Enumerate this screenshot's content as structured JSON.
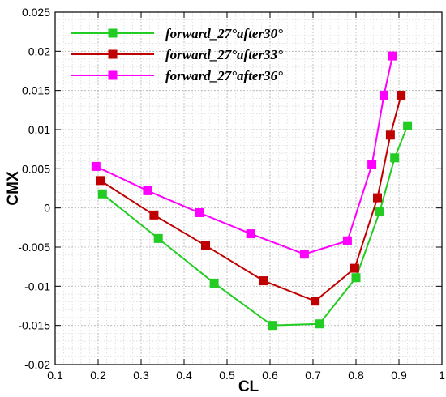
{
  "chart_data": {
    "type": "line",
    "xlabel": "CL",
    "ylabel": "CMX",
    "xlim": [
      0.1,
      1.0
    ],
    "ylim": [
      -0.02,
      0.025
    ],
    "xticks": [
      "0.1",
      "0.2",
      "0.3",
      "0.4",
      "0.5",
      "0.6",
      "0.7",
      "0.8",
      "0.9",
      "1"
    ],
    "yticks": [
      "-0.02",
      "-0.015",
      "-0.01",
      "-0.005",
      "0",
      "0.005",
      "0.01",
      "0.015",
      "0.02",
      "0.025"
    ],
    "grid": true,
    "legend_position": "top-left",
    "series": [
      {
        "name": "forward_27°after30°",
        "color": "#22cc22",
        "marker": "square",
        "points": [
          [
            0.21,
            0.0018
          ],
          [
            0.34,
            -0.0039
          ],
          [
            0.47,
            -0.0096
          ],
          [
            0.605,
            -0.015
          ],
          [
            0.715,
            -0.0148
          ],
          [
            0.8,
            -0.0089
          ],
          [
            0.855,
            -0.0005
          ],
          [
            0.89,
            0.0064
          ],
          [
            0.92,
            0.0105
          ]
        ]
      },
      {
        "name": "forward_27°after33°",
        "color": "#c00000",
        "marker": "square",
        "points": [
          [
            0.205,
            0.0035
          ],
          [
            0.33,
            -0.0009
          ],
          [
            0.45,
            -0.0048
          ],
          [
            0.585,
            -0.0093
          ],
          [
            0.705,
            -0.0119
          ],
          [
            0.797,
            -0.0077
          ],
          [
            0.85,
            0.0013
          ],
          [
            0.88,
            0.0093
          ],
          [
            0.905,
            0.0144
          ]
        ]
      },
      {
        "name": "forward_27°after36°",
        "color": "#ff00ff",
        "marker": "square",
        "points": [
          [
            0.195,
            0.0053
          ],
          [
            0.315,
            0.0022
          ],
          [
            0.435,
            -0.0006
          ],
          [
            0.555,
            -0.0033
          ],
          [
            0.68,
            -0.0059
          ],
          [
            0.78,
            -0.0042
          ],
          [
            0.837,
            0.0055
          ],
          [
            0.865,
            0.0144
          ],
          [
            0.885,
            0.0194
          ]
        ]
      }
    ]
  }
}
